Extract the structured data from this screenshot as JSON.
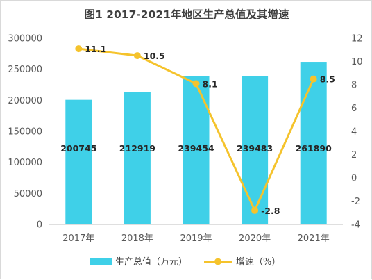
{
  "chart_data": {
    "type": "bar+line",
    "title": "图1  2017-2021年地区生产总值及其增速",
    "categories": [
      "2017年",
      "2018年",
      "2019年",
      "2020年",
      "2021年"
    ],
    "y_left": {
      "min": 0,
      "max": 300000,
      "step": 50000,
      "ticks": [
        "0",
        "50000",
        "100000",
        "150000",
        "200000",
        "250000",
        "300000"
      ]
    },
    "y_right": {
      "min": -4,
      "max": 12,
      "step": 2,
      "ticks": [
        "-4",
        "-2",
        "0",
        "2",
        "4",
        "6",
        "8",
        "10",
        "12"
      ]
    },
    "series": [
      {
        "name": "生产总值（万元）",
        "type": "bar",
        "axis": "left",
        "color": "#3fd0e8",
        "values": [
          200745,
          212919,
          239454,
          239483,
          261890
        ],
        "labels": [
          "200745",
          "212919",
          "239454",
          "239483",
          "261890"
        ]
      },
      {
        "name": "增速（%）",
        "type": "line",
        "axis": "right",
        "color": "#f5c32c",
        "values": [
          11.1,
          10.5,
          8.1,
          -2.8,
          8.5
        ],
        "labels": [
          "11.1",
          "10.5",
          "8.1",
          "-2.8",
          "8.5"
        ]
      }
    ],
    "legend_position": "bottom",
    "grid": false
  }
}
